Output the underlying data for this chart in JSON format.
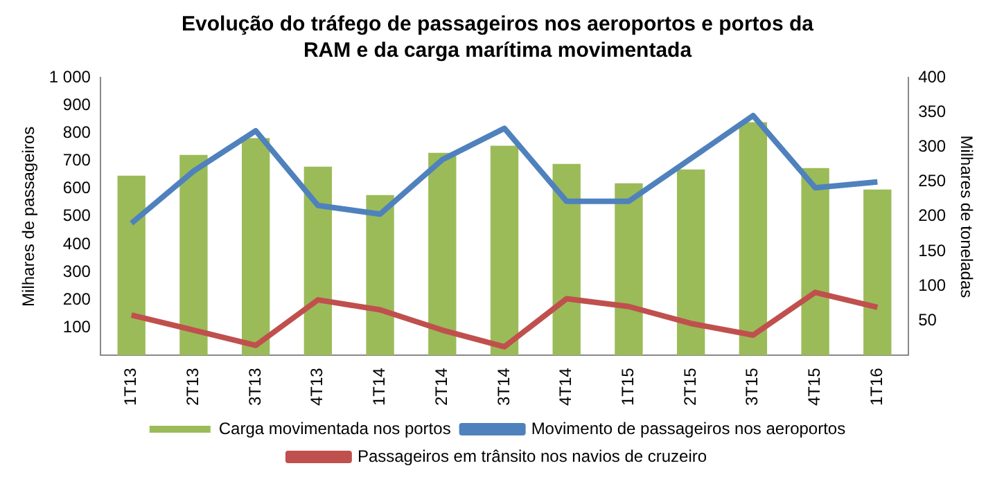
{
  "chart_data": {
    "type": "bar",
    "title": "Evolução do tráfego de passageiros nos aeroportos e portos da RAM e da carga marítima movimentada",
    "categories": [
      "1T13",
      "2T13",
      "3T13",
      "4T13",
      "1T14",
      "2T14",
      "3T14",
      "4T14",
      "1T15",
      "2T15",
      "3T15",
      "4T15",
      "1T16"
    ],
    "series": [
      {
        "name": "Carga movimentada nos portos",
        "axis": "y2",
        "color": "#9bbb59",
        "values": [
          259,
          289,
          313,
          272,
          231,
          292,
          302,
          276,
          248,
          268,
          336,
          270,
          239
        ]
      },
      {
        "name": "Movimento de passageiros nos aeroportos",
        "type": "line",
        "color": "#4f81bd",
        "values": [
          476,
          664,
          809,
          540,
          509,
          705,
          818,
          555,
          555,
          709,
          864,
          604,
          625
        ]
      },
      {
        "name": "Passageiros em trânsito nos navios de cruzeiro",
        "type": "line",
        "color": "#c0504d",
        "values": [
          145,
          91,
          36,
          200,
          164,
          91,
          31,
          204,
          176,
          115,
          73,
          227,
          173
        ]
      }
    ],
    "ylabel": "Milhares de passageiros",
    "y2label": "Milhares de toneladas",
    "ylim": [
      0,
      1000
    ],
    "yticks": [
      100,
      200,
      300,
      400,
      500,
      600,
      700,
      800,
      900,
      {
        "value": 1000,
        "label": "1 000"
      }
    ],
    "y2lim": [
      0,
      400
    ],
    "y2ticks": [
      50,
      100,
      150,
      200,
      250,
      300,
      350,
      400
    ],
    "grid": false,
    "legend": "bottom",
    "marker": "none"
  }
}
